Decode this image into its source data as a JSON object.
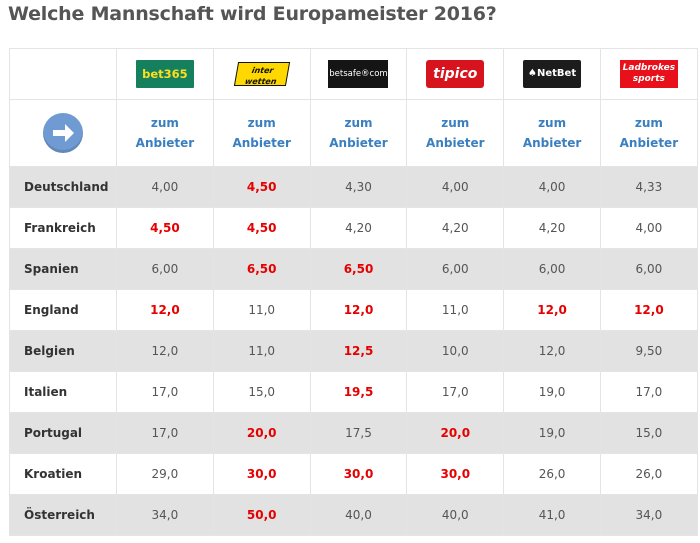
{
  "page": {
    "title": "Welche Mannschaft wird Europameister 2016?"
  },
  "bookmakers": [
    {
      "key": "bet365",
      "logo_text": "bet365",
      "logo_sub": "",
      "brand_color": "#14805e"
    },
    {
      "key": "interwetten",
      "logo_text": "inter",
      "logo_sub": "wetten",
      "brand_color": "#ffd800"
    },
    {
      "key": "belsafe",
      "logo_text": "betsafe®com",
      "logo_sub": "",
      "brand_color": "#151515"
    },
    {
      "key": "tipico",
      "logo_text": "tipico",
      "logo_sub": "",
      "brand_color": "#d7141e"
    },
    {
      "key": "netbet",
      "logo_text": "♠NetBet",
      "logo_sub": "",
      "brand_color": "#1c1c1c"
    },
    {
      "key": "ladbrokes",
      "logo_text": "Ladbrokes",
      "logo_sub": "sports",
      "brand_color": "#e8101a"
    }
  ],
  "link_row": {
    "icon": "arrow-right-circle-icon",
    "line1": "zum",
    "line2": "Anbieter"
  },
  "colors": {
    "best_odds": "#e60000",
    "link": "#3a7fc0",
    "shaded_row": "#e2e2e2"
  },
  "rows": [
    {
      "country": "Deutschland",
      "odds": [
        "4,00",
        "4,50",
        "4,30",
        "4,00",
        "4,00",
        "4,33"
      ],
      "best": [
        false,
        true,
        false,
        false,
        false,
        false
      ]
    },
    {
      "country": "Frankreich",
      "odds": [
        "4,50",
        "4,50",
        "4,20",
        "4,20",
        "4,20",
        "4,00"
      ],
      "best": [
        true,
        true,
        false,
        false,
        false,
        false
      ]
    },
    {
      "country": "Spanien",
      "odds": [
        "6,00",
        "6,50",
        "6,50",
        "6,00",
        "6,00",
        "6,00"
      ],
      "best": [
        false,
        true,
        true,
        false,
        false,
        false
      ]
    },
    {
      "country": "England",
      "odds": [
        "12,0",
        "11,0",
        "12,0",
        "11,0",
        "12,0",
        "12,0"
      ],
      "best": [
        true,
        false,
        true,
        false,
        true,
        true
      ]
    },
    {
      "country": "Belgien",
      "odds": [
        "12,0",
        "11,0",
        "12,5",
        "10,0",
        "12,0",
        "9,50"
      ],
      "best": [
        false,
        false,
        true,
        false,
        false,
        false
      ]
    },
    {
      "country": "Italien",
      "odds": [
        "17,0",
        "15,0",
        "19,5",
        "17,0",
        "19,0",
        "17,0"
      ],
      "best": [
        false,
        false,
        true,
        false,
        false,
        false
      ]
    },
    {
      "country": "Portugal",
      "odds": [
        "17,0",
        "20,0",
        "17,5",
        "20,0",
        "19,0",
        "15,0"
      ],
      "best": [
        false,
        true,
        false,
        true,
        false,
        false
      ]
    },
    {
      "country": "Kroatien",
      "odds": [
        "29,0",
        "30,0",
        "30,0",
        "30,0",
        "26,0",
        "26,0"
      ],
      "best": [
        false,
        true,
        true,
        true,
        false,
        false
      ]
    },
    {
      "country": "Österreich",
      "odds": [
        "34,0",
        "50,0",
        "40,0",
        "40,0",
        "41,0",
        "34,0"
      ],
      "best": [
        false,
        true,
        false,
        false,
        false,
        false
      ]
    }
  ]
}
